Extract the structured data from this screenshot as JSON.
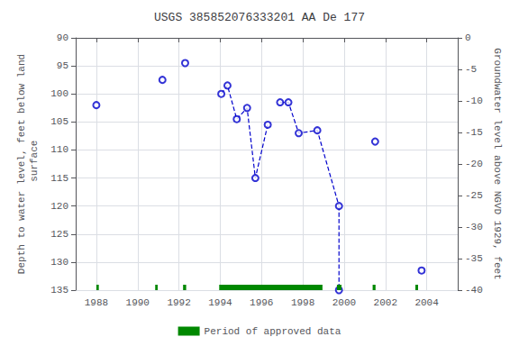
{
  "chart_data": {
    "type": "scatter",
    "title": "USGS 385852076333201 AA De 177",
    "ylabel": "Depth to water level, feet below land\n surface",
    "y2label": "Groundwater level above NGVD 1929, feet",
    "xlim": [
      1987,
      2005.5
    ],
    "xticks": [
      1988,
      1990,
      1992,
      1994,
      1996,
      1998,
      2000,
      2002,
      2004
    ],
    "ylim": [
      135,
      90
    ],
    "yticks": [
      90,
      95,
      100,
      105,
      110,
      115,
      120,
      125,
      130,
      135
    ],
    "y2lim": [
      -40,
      0
    ],
    "y2ticks": [
      0,
      -5,
      -10,
      -15,
      -20,
      -25,
      -30,
      -35,
      -40
    ],
    "grid": true,
    "legend": "bottom",
    "series": [
      {
        "type": "line",
        "line_style": "dashed",
        "color": "#0000cc",
        "x": [
          1994.05,
          1994.35,
          1994.8,
          1995.3,
          1995.7,
          1996.3
        ],
        "values": [
          100.0,
          98.5,
          104.5,
          102.5,
          115.0,
          105.5
        ]
      },
      {
        "type": "line",
        "line_style": "dashed",
        "color": "#0000cc",
        "x": [
          1996.9,
          1997.3,
          1997.8,
          1998.7,
          1999.75
        ],
        "values": [
          101.5,
          101.5,
          107.0,
          106.5,
          120.0
        ]
      },
      {
        "type": "line",
        "line_style": "dashed",
        "color": "#0000cc",
        "x": [
          1999.75,
          1999.75
        ],
        "values": [
          120.0,
          135.0
        ]
      },
      {
        "type": "scatter",
        "marker": "open circle",
        "color": "#0000cc",
        "x": [
          1988.0,
          1991.2,
          1992.3,
          1994.05,
          1994.35,
          1994.8,
          1995.3,
          1995.7,
          1996.3,
          1996.9,
          1997.3,
          1997.8,
          1998.7,
          1999.75,
          2001.5,
          2003.75,
          1999.75
        ],
        "values": [
          102.0,
          97.5,
          94.5,
          100.0,
          98.5,
          104.5,
          102.5,
          115.0,
          105.5,
          101.5,
          101.5,
          107.0,
          106.5,
          120.0,
          108.5,
          131.5,
          135.0
        ]
      },
      {
        "type": "band",
        "name": "Period of approved data",
        "color": "#008800",
        "periods": [
          [
            1988.0,
            1988.12
          ],
          [
            1990.85,
            1990.97
          ],
          [
            1992.2,
            1992.35
          ],
          [
            1993.95,
            1998.95
          ],
          [
            1999.65,
            1999.87
          ],
          [
            2001.38,
            2001.52
          ],
          [
            2003.45,
            2003.58
          ]
        ]
      }
    ]
  }
}
